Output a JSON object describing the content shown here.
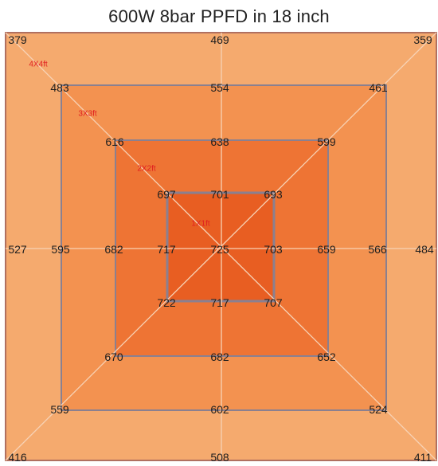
{
  "title": "600W 8bar PPFD in 18 inch",
  "colors": {
    "zone_4x4": "#F5AA6E",
    "zone_3x3": "#F39250",
    "zone_2x2": "#EE7434",
    "zone_1x1": "#E85E22",
    "outer_frame": "#B07060",
    "square_border": "#8A8090",
    "diagonal": "#F7D2B5",
    "zone_label": "#E02020",
    "value_text": "#1E1E1E"
  },
  "zones": [
    {
      "label": "4X4ft"
    },
    {
      "label": "3X3ft"
    },
    {
      "label": "2X2ft"
    },
    {
      "label": "1X1ft"
    }
  ],
  "readings": {
    "center": "725",
    "zone_4x4": {
      "top_left": "379",
      "top": "469",
      "top_right": "359",
      "left": "527",
      "right": "484",
      "bottom_left": "416",
      "bottom": "508",
      "bottom_right": "411"
    },
    "zone_3x3": {
      "top_left": "483",
      "top": "554",
      "top_right": "461",
      "left": "595",
      "right": "566",
      "bottom_left": "559",
      "bottom": "602",
      "bottom_right": "524"
    },
    "zone_2x2": {
      "top_left": "616",
      "top": "638",
      "top_right": "599",
      "left": "682",
      "right": "659",
      "bottom_left": "670",
      "bottom": "682",
      "bottom_right": "652"
    },
    "zone_1x1": {
      "top_left": "697",
      "top": "701",
      "top_right": "693",
      "left": "717",
      "right": "703",
      "bottom_left": "722",
      "bottom": "717",
      "bottom_right": "707"
    }
  }
}
